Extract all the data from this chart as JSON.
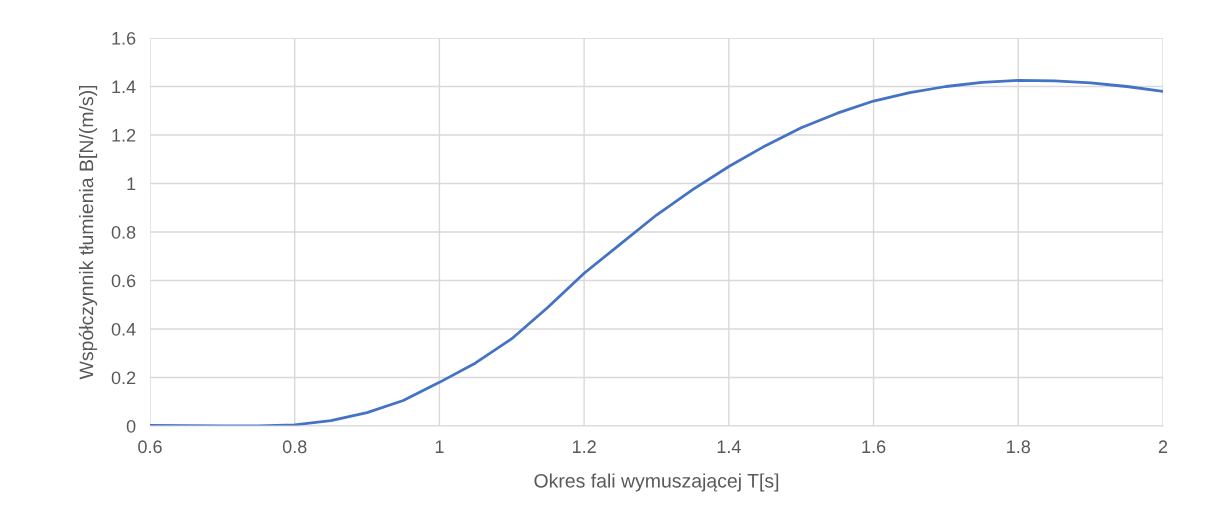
{
  "chart_data": {
    "type": "line",
    "xlabel": "Okres fali wymuszającej T[s]",
    "ylabel": "Współczynnik tłumienia B[N/(m/s)]",
    "x": [
      0.6,
      0.65,
      0.7,
      0.75,
      0.8,
      0.85,
      0.9,
      0.95,
      1.0,
      1.05,
      1.1,
      1.15,
      1.2,
      1.25,
      1.3,
      1.35,
      1.4,
      1.45,
      1.5,
      1.55,
      1.6,
      1.65,
      1.7,
      1.75,
      1.8,
      1.85,
      1.9,
      1.95,
      2.0
    ],
    "series": [
      {
        "color": "#4472c4",
        "values": [
          0.003,
          0.001,
          0.0,
          0.0,
          0.005,
          0.022,
          0.055,
          0.105,
          0.18,
          0.26,
          0.36,
          0.49,
          0.63,
          0.75,
          0.87,
          0.975,
          1.07,
          1.155,
          1.23,
          1.29,
          1.34,
          1.375,
          1.4,
          1.417,
          1.425,
          1.423,
          1.415,
          1.4,
          1.38
        ]
      }
    ],
    "xlim": [
      0.6,
      2
    ],
    "xticks": [
      0.6,
      0.8,
      1,
      1.2,
      1.4,
      1.6,
      1.8,
      2
    ],
    "ylim": [
      0,
      1.6
    ],
    "yticks": [
      0,
      0.2,
      0.4,
      0.6,
      0.8,
      1,
      1.2,
      1.4,
      1.6
    ],
    "grid": true,
    "marker": "none",
    "line_style": "solid"
  }
}
